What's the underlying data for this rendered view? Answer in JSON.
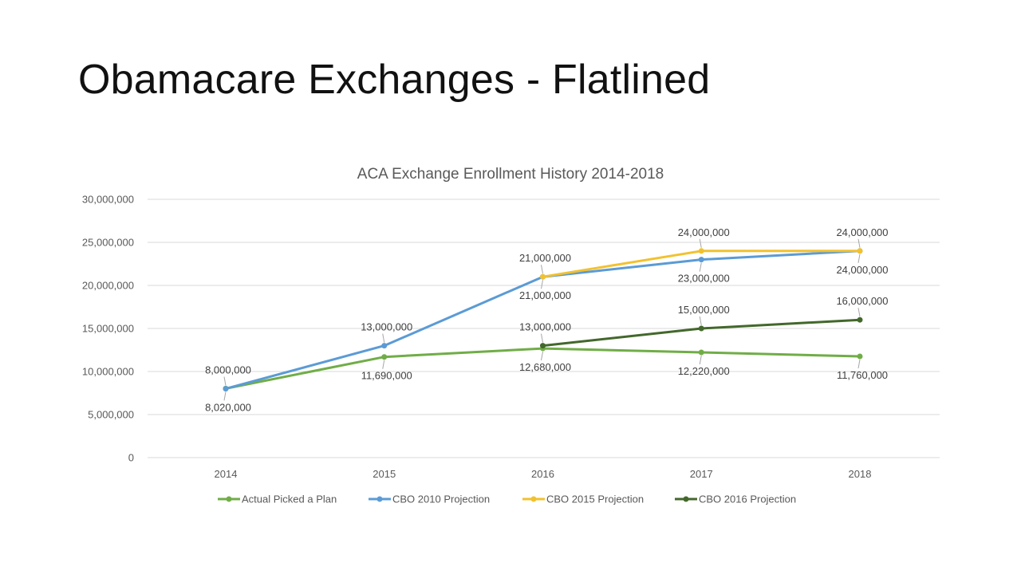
{
  "slide": {
    "title": "Obamacare Exchanges - Flatlined"
  },
  "colors": {
    "actual": "#70AD47",
    "cbo2010": "#5B9BD5",
    "cbo2015": "#F2C12E",
    "cbo2016": "#43682B",
    "grid": "#D9D9D9",
    "text": "#595959"
  },
  "chart_data": {
    "type": "line",
    "title": "ACA Exchange Enrollment History 2014-2018",
    "xlabel": "",
    "ylabel": "",
    "categories": [
      "2014",
      "2015",
      "2016",
      "2017",
      "2018"
    ],
    "ylim": [
      0,
      30000000
    ],
    "yticks": [
      0,
      5000000,
      10000000,
      15000000,
      20000000,
      25000000,
      30000000
    ],
    "ytick_labels": [
      "0",
      "5,000,000",
      "10,000,000",
      "15,000,000",
      "20,000,000",
      "25,000,000",
      "30,000,000"
    ],
    "grid": true,
    "legend_position": "bottom",
    "series": [
      {
        "name": "Actual Picked a Plan",
        "color_key": "actual",
        "values": [
          8020000,
          11690000,
          12680000,
          12220000,
          11760000
        ],
        "labels": [
          "8,020,000",
          "11,690,000",
          "12,680,000",
          "12,220,000",
          "11,760,000"
        ],
        "label_side": [
          "below",
          "below",
          "below",
          "below",
          "below"
        ]
      },
      {
        "name": "CBO 2010 Projection",
        "color_key": "cbo2010",
        "values": [
          8000000,
          13000000,
          21000000,
          23000000,
          24000000
        ],
        "labels": [
          "8,000,000",
          "13,000,000",
          "21,000,000",
          "23,000,000",
          "24,000,000"
        ],
        "label_side": [
          "above",
          "above",
          "below",
          "below",
          "below"
        ]
      },
      {
        "name": "CBO 2015 Projection",
        "color_key": "cbo2015",
        "values": [
          null,
          null,
          21000000,
          24000000,
          24000000
        ],
        "labels": [
          null,
          null,
          "21,000,000",
          "24,000,000",
          "24,000,000"
        ],
        "label_side": [
          null,
          null,
          "above",
          "above",
          "above"
        ]
      },
      {
        "name": "CBO 2016 Projection",
        "color_key": "cbo2016",
        "values": [
          null,
          null,
          13000000,
          15000000,
          16000000
        ],
        "labels": [
          null,
          null,
          "13,000,000",
          "15,000,000",
          "16,000,000"
        ],
        "label_side": [
          null,
          null,
          "above",
          "above",
          "above"
        ]
      }
    ]
  }
}
